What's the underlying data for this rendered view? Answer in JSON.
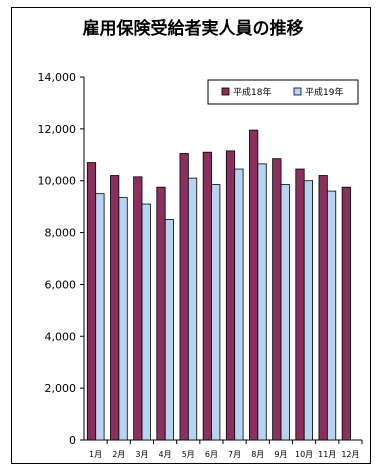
{
  "chart_data": {
    "type": "bar",
    "title": "雇用保険受給者実人員の推移",
    "categories": [
      "1月",
      "2月",
      "3月",
      "4月",
      "5月",
      "6月",
      "7月",
      "8月",
      "9月",
      "10月",
      "11月",
      "12月"
    ],
    "series": [
      {
        "name": "平成18年",
        "color": "#8b2f5f",
        "values": [
          10700,
          10200,
          10150,
          9750,
          11050,
          11100,
          11150,
          11950,
          10850,
          10450,
          10200,
          9750
        ]
      },
      {
        "name": "平成19年",
        "color": "#b7d3f2",
        "values": [
          9500,
          9350,
          9100,
          8500,
          10100,
          9850,
          10450,
          10650,
          9850,
          10000,
          9600,
          null
        ]
      }
    ],
    "yticks": [
      "0",
      "2,000",
      "4,000",
      "6,000",
      "8,000",
      "10,000",
      "12,000",
      "14,000"
    ],
    "ylim": [
      0,
      14000
    ],
    "legend_position": "top-right",
    "grid": false
  }
}
